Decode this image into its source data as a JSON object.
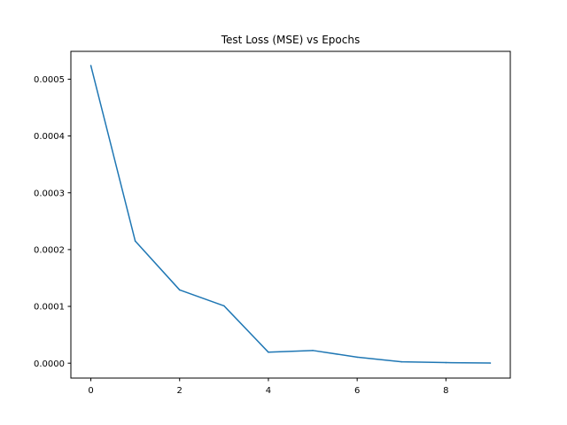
{
  "chart_data": {
    "type": "line",
    "title": "Test Loss (MSE) vs Epochs",
    "xlabel": "",
    "ylabel": "",
    "xlim": [
      -0.45,
      9.45
    ],
    "ylim": [
      -2.62e-05,
      0.000549
    ],
    "x_ticks": [
      0,
      2,
      4,
      6,
      8
    ],
    "x_tick_labels": [
      "0",
      "2",
      "4",
      "6",
      "8"
    ],
    "y_ticks": [
      0.0,
      0.0001,
      0.0002,
      0.0003,
      0.0004,
      0.0005
    ],
    "y_tick_labels": [
      "0.0000",
      "0.0001",
      "0.0002",
      "0.0003",
      "0.0004",
      "0.0005"
    ],
    "grid": false,
    "series": [
      {
        "color": "#1f77b4",
        "x": [
          0,
          1,
          2,
          3,
          4,
          5,
          6,
          7,
          8,
          9
        ],
        "values": [
          0.000524,
          0.000215,
          0.000129,
          0.000101,
          1.93e-05,
          2.24e-05,
          1.06e-05,
          2.5e-06,
          1e-06,
          2e-07
        ]
      }
    ]
  }
}
